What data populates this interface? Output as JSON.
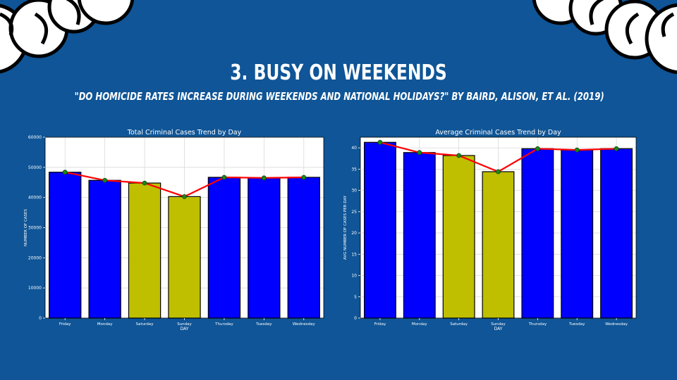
{
  "slide": {
    "title": "3. Busy on Weekends",
    "subtitle": "\"Do homicide rates increase during weekends and national holidays?\" by Baird, Alison, et al. (2019)"
  },
  "colors": {
    "background": "#0f5597",
    "weekday_bar": "#0000ff",
    "weekend_bar": "#bfbf00",
    "trend_line": "#ff0000",
    "trend_marker": "#1a8a1a"
  },
  "chart_data": [
    {
      "type": "bar",
      "title": "Total Criminal Cases Trend by Day",
      "xlabel": "DAY",
      "ylabel": "NUMBER OF CASES",
      "categories": [
        "Friday",
        "Monday",
        "Saturday",
        "Sunday",
        "Thursday",
        "Tuesday",
        "Wednesday"
      ],
      "values": [
        48400,
        45700,
        44800,
        40300,
        46700,
        46500,
        46700
      ],
      "highlight": [
        false,
        false,
        true,
        true,
        false,
        false,
        false
      ],
      "overlay_line": true,
      "ylim": [
        0,
        60000
      ],
      "yticks": [
        0,
        10000,
        20000,
        30000,
        40000,
        50000,
        60000
      ],
      "grid": true
    },
    {
      "type": "bar",
      "title": "Average Criminal Cases Trend by Day",
      "xlabel": "DAY",
      "ylabel": "AVG NUMBER OF CASES PER DAY",
      "categories": [
        "Friday",
        "Monday",
        "Saturday",
        "Sunday",
        "Thursday",
        "Tuesday",
        "Wednesday"
      ],
      "values": [
        41.3,
        38.9,
        38.2,
        34.4,
        39.8,
        39.5,
        39.8
      ],
      "highlight": [
        false,
        false,
        true,
        true,
        false,
        false,
        false
      ],
      "overlay_line": true,
      "ylim": [
        0,
        42.5
      ],
      "yticks": [
        0,
        5,
        10,
        15,
        20,
        25,
        30,
        35,
        40
      ],
      "grid": true
    }
  ]
}
